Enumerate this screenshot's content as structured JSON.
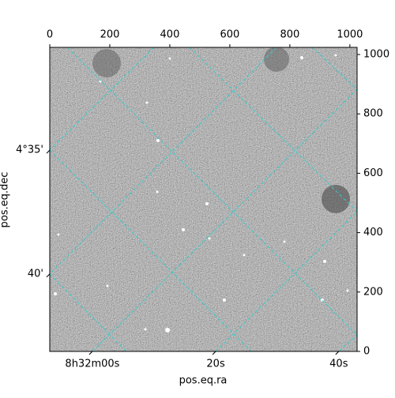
{
  "chart_data": {
    "type": "image",
    "xlabel": "pos.eq.ra",
    "ylabel": "pos.eq.dec",
    "xlim": [
      0,
      1024
    ],
    "xticks": [
      0,
      200,
      400,
      600,
      800,
      1000
    ],
    "ylim": [
      0,
      1024
    ],
    "yticks": [
      0,
      200,
      400,
      600,
      800,
      1000
    ],
    "ra_ticks": [
      {
        "value": 142,
        "label": "8h32m00s"
      },
      {
        "value": 553,
        "label": "20s"
      },
      {
        "value": 963,
        "label": "40s"
      }
    ],
    "dec_ticks": [
      {
        "value": 678,
        "label": "4°35'"
      },
      {
        "value": 261,
        "label": "40'"
      }
    ],
    "grid_color": "#33cccc"
  }
}
